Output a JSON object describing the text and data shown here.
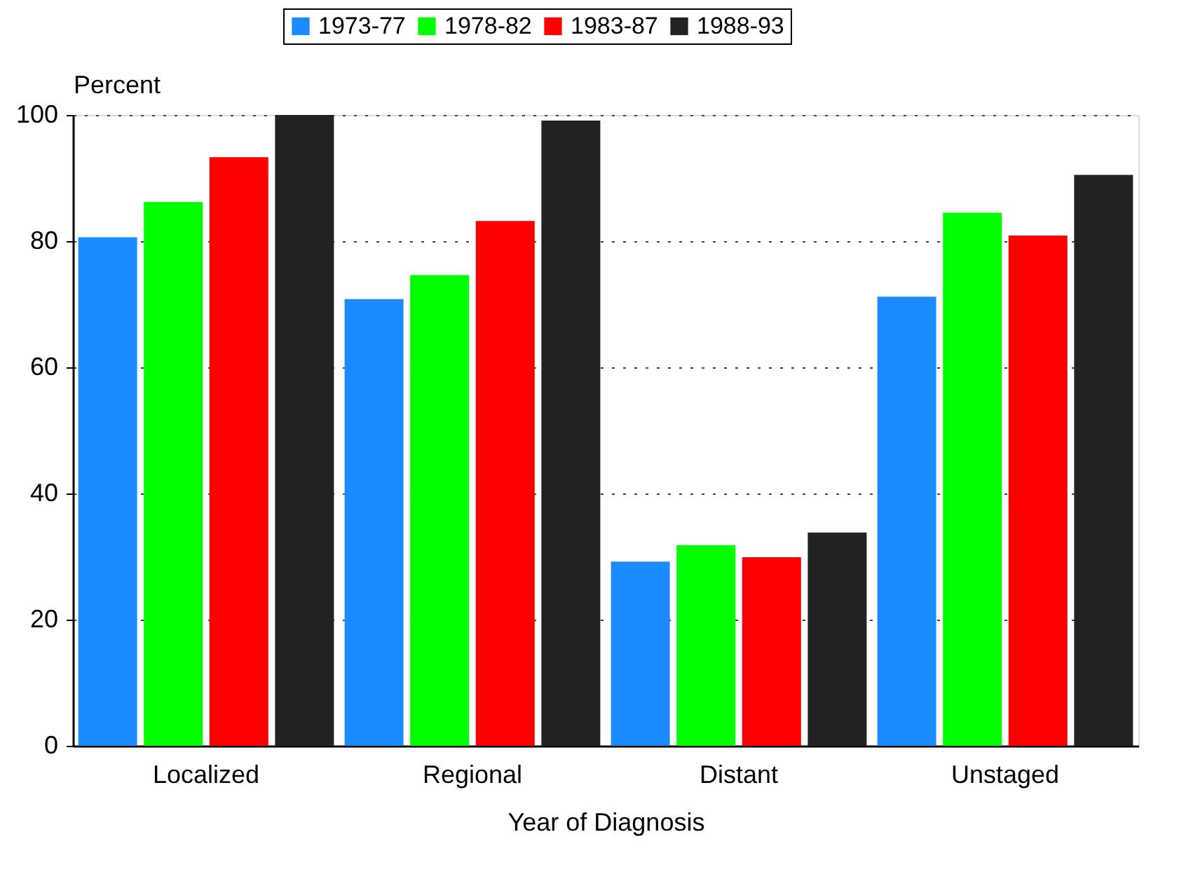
{
  "chart_data": {
    "type": "bar",
    "xlabel": "Year of Diagnosis",
    "ylabel": "Percent",
    "categories": [
      "Localized",
      "Regional",
      "Distant",
      "Unstaged"
    ],
    "series": [
      {
        "name": "1973-77",
        "color": "#1a8cff",
        "values": [
          80.6,
          70.8,
          29.2,
          71.2
        ]
      },
      {
        "name": "1978-82",
        "color": "#00ff00",
        "values": [
          86.2,
          74.6,
          31.8,
          84.5
        ]
      },
      {
        "name": "1983-87",
        "color": "#ff0000",
        "values": [
          93.3,
          83.2,
          29.9,
          80.9
        ]
      },
      {
        "name": "1988-93",
        "color": "#222222",
        "values": [
          100,
          99.1,
          33.8,
          90.5
        ]
      }
    ],
    "ylim": [
      0,
      100
    ],
    "yticks": [
      0,
      20,
      40,
      60,
      80,
      100
    ],
    "grid": "y",
    "legend": "top"
  }
}
